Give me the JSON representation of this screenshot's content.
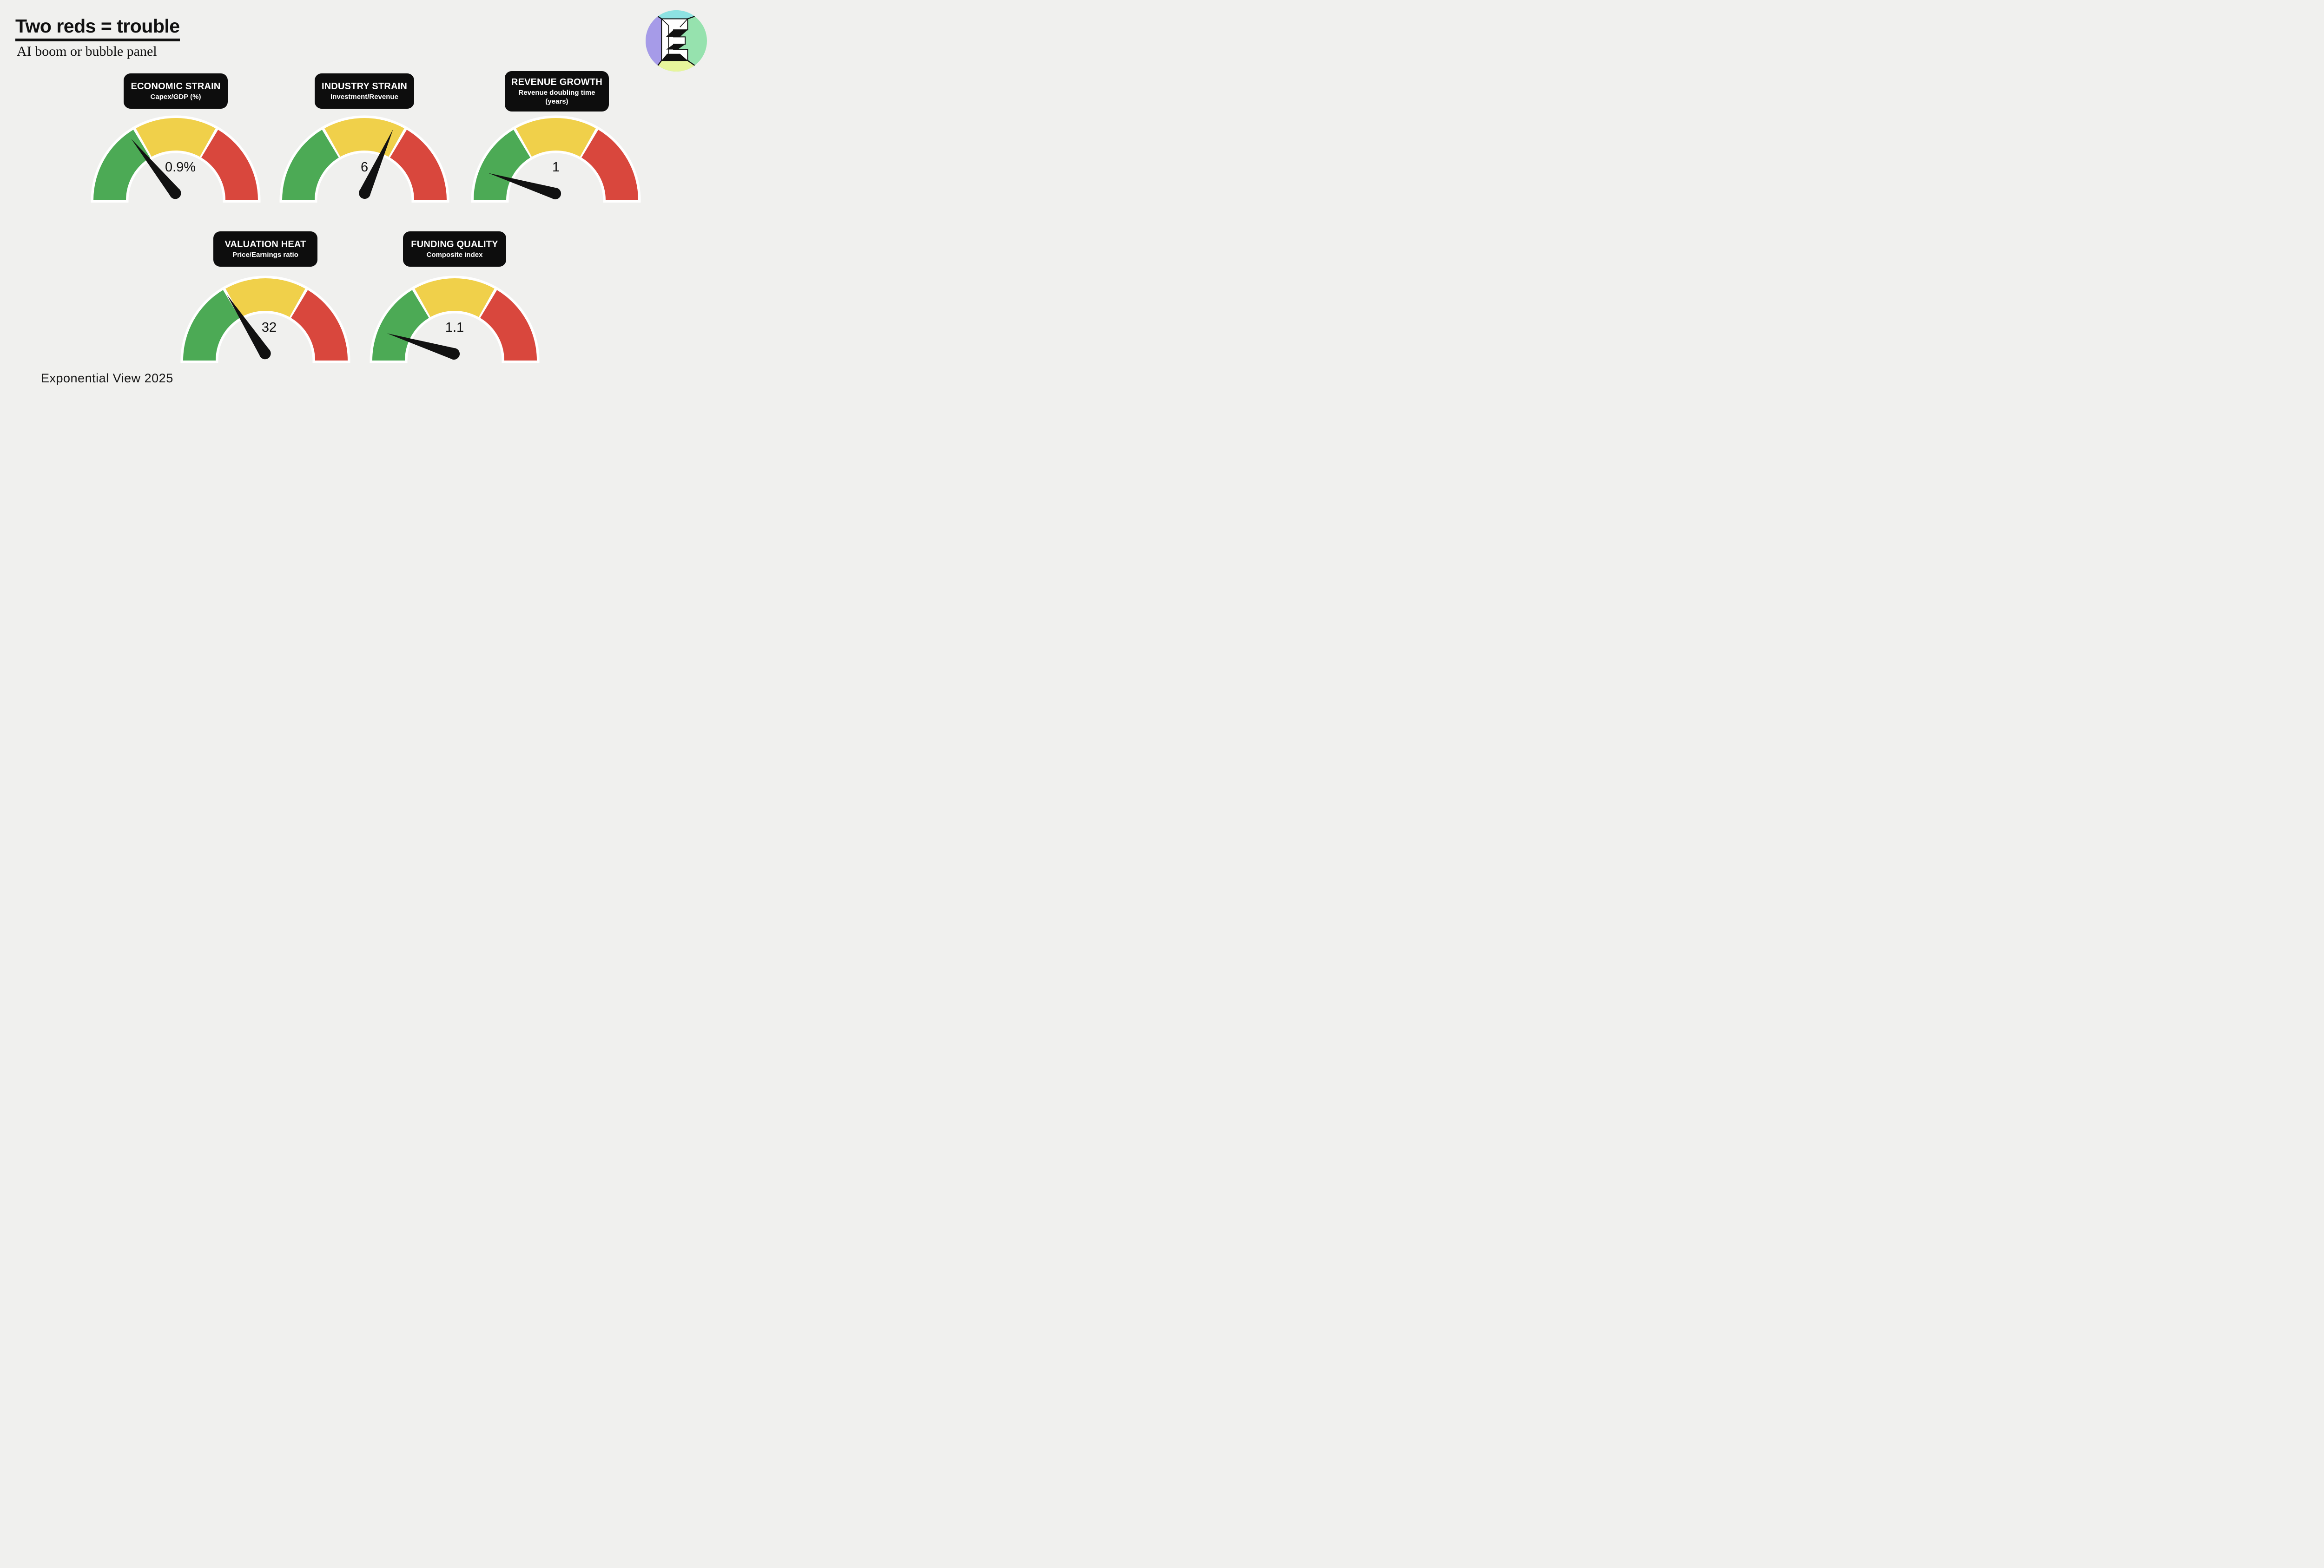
{
  "header": {
    "title": "Two reds = trouble",
    "subtitle": "AI boom or bubble panel"
  },
  "footer": {
    "credit": "Exponential View 2025"
  },
  "logo": {
    "name": "exponential-view-logo",
    "letter": "E"
  },
  "colors": {
    "background": "#f0f0ee",
    "gauge_green": "#4caa55",
    "gauge_yellow": "#f0d04a",
    "gauge_red": "#d9473d",
    "label_box_black": "#0d0d0d",
    "needle_black": "#111111",
    "ring_border_white": "#ffffff",
    "logo_cyan": "#8de2e2",
    "logo_purple": "#a69be8",
    "logo_green": "#96e2ae",
    "logo_lime": "#e7f59c"
  },
  "chart_data": [
    {
      "type": "gauge",
      "title": "ECONOMIC STRAIN",
      "subtitle": "Capex/GDP (%)",
      "value": 0.9,
      "value_display": "0.9%",
      "needle_angle_deg": 129,
      "needle_zone": "green (near yellow boundary)",
      "zones": [
        "green",
        "yellow",
        "red"
      ],
      "zone_angles_deg": {
        "green": [
          180,
          120
        ],
        "yellow": [
          120,
          60
        ],
        "red": [
          60,
          0
        ]
      }
    },
    {
      "type": "gauge",
      "title": "INDUSTRY STRAIN",
      "subtitle": "Investment/Revenue",
      "value": 6,
      "value_display": "6",
      "needle_angle_deg": 66,
      "needle_zone": "yellow (near red boundary)",
      "zones": [
        "green",
        "yellow",
        "red"
      ],
      "zone_angles_deg": {
        "green": [
          180,
          120
        ],
        "yellow": [
          120,
          60
        ],
        "red": [
          60,
          0
        ]
      }
    },
    {
      "type": "gauge",
      "title": "REVENUE GROWTH",
      "subtitle": "Revenue doubling time (years)",
      "value": 1,
      "value_display": "1",
      "needle_angle_deg": 163,
      "needle_zone": "green (low end)",
      "zones": [
        "green",
        "yellow",
        "red"
      ],
      "zone_angles_deg": {
        "green": [
          180,
          120
        ],
        "yellow": [
          120,
          60
        ],
        "red": [
          60,
          0
        ]
      }
    },
    {
      "type": "gauge",
      "title": "VALUATION HEAT",
      "subtitle": "Price/Earnings ratio",
      "value": 32,
      "value_display": "32",
      "needle_angle_deg": 123,
      "needle_zone": "green/yellow boundary",
      "zones": [
        "green",
        "yellow",
        "red"
      ],
      "zone_angles_deg": {
        "green": [
          180,
          120
        ],
        "yellow": [
          120,
          60
        ],
        "red": [
          60,
          0
        ]
      }
    },
    {
      "type": "gauge",
      "title": "FUNDING QUALITY",
      "subtitle": "Composite index",
      "value": 1.1,
      "value_display": "1.1",
      "needle_angle_deg": 163,
      "needle_zone": "green (low end)",
      "zones": [
        "green",
        "yellow",
        "red"
      ],
      "zone_angles_deg": {
        "green": [
          180,
          120
        ],
        "yellow": [
          120,
          60
        ],
        "red": [
          60,
          0
        ]
      }
    }
  ]
}
